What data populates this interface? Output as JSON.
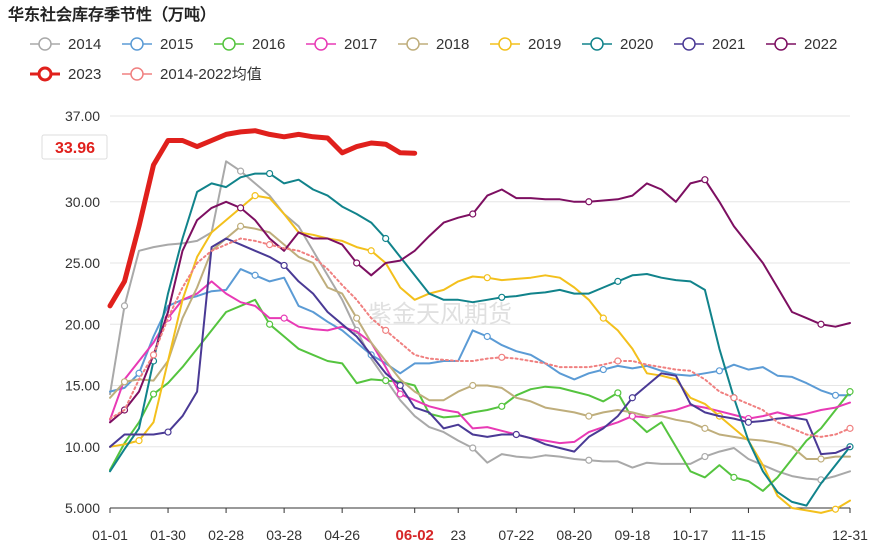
{
  "chart_data": {
    "type": "line",
    "title": "华东社会库存季节性（万吨）",
    "watermark": "紫金天风期货",
    "highlight_value": "33.96",
    "highlight_x_label": "06-02",
    "ylim": [
      5,
      37
    ],
    "y_ticks": [
      "37.00",
      "30.00",
      "25.00",
      "20.00",
      "15.00",
      "10.00",
      "5.000"
    ],
    "y_tick_values": [
      37,
      30,
      25,
      20,
      15,
      10,
      5
    ],
    "x_ticks": [
      "01-01",
      "01-30",
      "02-28",
      "03-28",
      "04-26",
      "06-02",
      "23",
      "07-22",
      "08-20",
      "09-18",
      "10-17",
      "11-15",
      "12-31"
    ],
    "x_tick_weeks": [
      0,
      4,
      8,
      12,
      16,
      21,
      24,
      28,
      32,
      36,
      40,
      44,
      51
    ],
    "x_unit": "week index (0 = 01-01, 51 = 12-31)",
    "series": [
      {
        "name": "2014",
        "color": "#a9a9a9",
        "values": [
          14.3,
          21.5,
          26.0,
          26.3,
          26.5,
          26.6,
          26.8,
          27.5,
          33.3,
          32.5,
          31.5,
          30.5,
          29.0,
          28.0,
          26.0,
          24.0,
          22.0,
          19.5,
          17.2,
          15.5,
          13.8,
          12.5,
          11.6,
          11.2,
          10.5,
          9.9,
          8.7,
          9.4,
          9.2,
          9.1,
          9.3,
          9.2,
          9.0,
          8.9,
          8.8,
          8.8,
          8.3,
          8.7,
          8.6,
          8.6,
          8.6,
          9.2,
          9.6,
          9.9,
          9.0,
          8.5,
          8.0,
          7.6,
          7.4,
          7.3,
          7.6,
          8.0
        ]
      },
      {
        "name": "2015",
        "color": "#5b9bd5",
        "values": [
          14.5,
          14.8,
          16.0,
          19.0,
          21.5,
          22.0,
          22.3,
          22.7,
          22.8,
          24.5,
          24.0,
          23.5,
          23.8,
          21.5,
          21.0,
          20.2,
          19.5,
          18.5,
          17.5,
          16.8,
          16.0,
          16.8,
          16.8,
          17.0,
          17.0,
          19.5,
          19.0,
          18.3,
          17.8,
          17.5,
          16.8,
          16.0,
          15.5,
          16.0,
          16.3,
          16.6,
          16.4,
          16.6,
          16.2,
          15.9,
          15.8,
          16.0,
          16.2,
          16.7,
          16.3,
          16.5,
          15.8,
          15.7,
          15.2,
          14.6,
          14.2,
          14.2
        ]
      },
      {
        "name": "2016",
        "color": "#55c43f",
        "values": [
          8.1,
          10.3,
          12.0,
          14.3,
          15.2,
          16.5,
          18.0,
          19.5,
          21.0,
          21.5,
          22.0,
          20.0,
          19.0,
          18.0,
          17.5,
          17.0,
          16.8,
          15.2,
          15.5,
          15.4,
          15.3,
          15.0,
          12.7,
          12.4,
          12.5,
          12.8,
          13.0,
          13.3,
          14.2,
          14.7,
          14.9,
          14.8,
          14.5,
          14.2,
          13.7,
          14.4,
          12.3,
          11.2,
          12.0,
          10.0,
          8.0,
          7.5,
          8.5,
          7.5,
          7.2,
          6.4,
          7.5,
          9.0,
          10.5,
          11.5,
          13.0,
          14.5
        ]
      },
      {
        "name": "2017",
        "color": "#e83ab5",
        "values": [
          12.2,
          15.5,
          17.0,
          18.5,
          20.5,
          22.0,
          22.5,
          23.5,
          22.5,
          21.8,
          21.5,
          20.5,
          20.5,
          19.8,
          19.6,
          19.5,
          19.8,
          19.4,
          18.5,
          16.5,
          14.3,
          13.8,
          13.3,
          13.0,
          12.8,
          11.5,
          11.6,
          11.3,
          11.0,
          10.7,
          10.5,
          10.3,
          10.4,
          11.2,
          11.6,
          12.0,
          12.5,
          12.4,
          12.8,
          13.0,
          13.4,
          13.2,
          12.9,
          12.6,
          12.3,
          12.5,
          12.8,
          12.5,
          12.7,
          13.0,
          13.2,
          13.6
        ]
      },
      {
        "name": "2018",
        "color": "#bfae7c",
        "values": [
          14.0,
          15.3,
          15.5,
          15.4,
          17.0,
          20.5,
          23.0,
          26.0,
          27.0,
          28.0,
          27.8,
          27.5,
          26.5,
          25.5,
          25.0,
          23.0,
          22.5,
          20.5,
          18.5,
          17.0,
          15.5,
          14.5,
          13.8,
          13.8,
          14.5,
          15.0,
          15.0,
          14.8,
          14.0,
          13.7,
          13.2,
          13.0,
          12.8,
          12.5,
          12.8,
          13.0,
          12.8,
          12.5,
          12.5,
          12.2,
          12.0,
          11.5,
          11.0,
          10.8,
          10.6,
          10.5,
          10.3,
          10.0,
          9.0,
          9.0,
          9.2,
          9.2
        ]
      },
      {
        "name": "2019",
        "color": "#f3c01c",
        "values": [
          10.0,
          10.2,
          10.5,
          12.0,
          17.0,
          22.0,
          25.5,
          27.5,
          28.5,
          29.5,
          30.5,
          30.3,
          29.0,
          27.5,
          27.3,
          27.0,
          26.8,
          26.3,
          26.0,
          25.0,
          23.0,
          22.0,
          22.5,
          22.8,
          23.5,
          23.9,
          23.8,
          23.6,
          23.7,
          23.8,
          24.0,
          23.8,
          23.0,
          22.0,
          20.5,
          19.5,
          18.0,
          16.0,
          15.8,
          15.5,
          14.0,
          13.5,
          12.5,
          11.5,
          10.5,
          8.5,
          6.0,
          5.0,
          4.8,
          4.6,
          4.9,
          5.6
        ]
      },
      {
        "name": "2020",
        "color": "#11838b",
        "values": [
          8.0,
          9.8,
          11.5,
          17.0,
          22.5,
          27.0,
          30.8,
          31.5,
          31.2,
          32.0,
          32.3,
          32.3,
          31.5,
          31.8,
          31.0,
          30.5,
          29.6,
          29.0,
          28.3,
          27.0,
          25.5,
          24.0,
          22.5,
          22.0,
          22.0,
          21.8,
          22.0,
          22.2,
          22.3,
          22.5,
          22.6,
          22.8,
          22.5,
          22.5,
          23.0,
          23.5,
          24.0,
          24.1,
          23.8,
          23.6,
          23.5,
          22.8,
          18.0,
          14.0,
          10.5,
          8.0,
          6.3,
          5.5,
          5.2,
          7.0,
          8.5,
          10.0
        ]
      },
      {
        "name": "2021",
        "color": "#4a3a95",
        "values": [
          10.0,
          11.0,
          11.0,
          11.0,
          11.2,
          12.5,
          14.5,
          26.3,
          27.0,
          26.5,
          26.0,
          25.5,
          24.8,
          23.5,
          22.5,
          21.0,
          20.0,
          19.0,
          17.5,
          16.0,
          15.0,
          13.2,
          12.8,
          11.5,
          11.8,
          11.0,
          10.8,
          11.0,
          11.0,
          10.7,
          10.2,
          9.9,
          9.6,
          10.8,
          11.5,
          12.5,
          14.0,
          15.0,
          16.0,
          15.8,
          13.5,
          12.8,
          12.5,
          12.3,
          12.0,
          12.1,
          12.3,
          12.4,
          12.2,
          9.4,
          9.5,
          10.0
        ]
      },
      {
        "name": "2022",
        "color": "#7d0f61",
        "values": [
          12.0,
          13.0,
          14.5,
          17.5,
          21.0,
          26.0,
          28.5,
          29.5,
          30.0,
          29.5,
          28.5,
          27.0,
          26.0,
          27.5,
          27.0,
          27.0,
          26.5,
          25.0,
          24.0,
          25.0,
          25.2,
          26.0,
          27.2,
          28.3,
          28.7,
          29.0,
          30.5,
          31.0,
          30.3,
          30.3,
          30.2,
          30.2,
          30.0,
          30.0,
          30.1,
          30.2,
          30.5,
          31.5,
          31.0,
          30.0,
          31.5,
          31.8,
          30.0,
          28.0,
          26.5,
          25.0,
          23.0,
          21.0,
          20.5,
          20.0,
          19.8,
          20.1
        ]
      },
      {
        "name": "2023",
        "color": "#e0201c",
        "values": [
          21.5,
          23.5,
          28.0,
          33.0,
          35.0,
          35.0,
          34.5,
          35.0,
          35.5,
          35.7,
          35.8,
          35.5,
          35.3,
          35.5,
          35.3,
          35.2,
          34.0,
          34.5,
          34.8,
          34.7,
          34.0,
          33.96
        ]
      },
      {
        "name": "2014-2022均值",
        "color": "#f08080",
        "dashed": true,
        "values": [
          12.3,
          13.0,
          15.5,
          17.5,
          20.5,
          23.0,
          25.0,
          26.0,
          26.5,
          27.0,
          26.8,
          26.5,
          26.2,
          26.0,
          25.5,
          24.5,
          23.2,
          22.0,
          20.5,
          19.5,
          18.5,
          17.5,
          17.2,
          17.1,
          17.0,
          17.0,
          17.2,
          17.3,
          17.2,
          17.0,
          16.8,
          16.5,
          16.5,
          16.5,
          16.7,
          17.0,
          17.0,
          16.7,
          16.5,
          16.3,
          16.2,
          15.5,
          14.5,
          14.0,
          13.5,
          13.0,
          12.0,
          11.5,
          11.0,
          10.8,
          11.0,
          11.5
        ]
      }
    ]
  }
}
